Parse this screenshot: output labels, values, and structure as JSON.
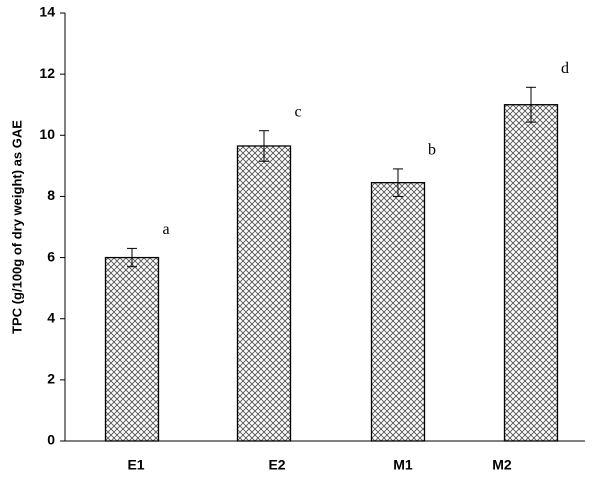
{
  "chart_data": {
    "type": "bar",
    "y_label": "TPC (g/100g of dry weight) as GAE",
    "categories": [
      "E1",
      "E2",
      "M1",
      "M2"
    ],
    "values": [
      6.0,
      9.65,
      8.45,
      11.0
    ],
    "errors": [
      0.3,
      0.5,
      0.45,
      0.57
    ],
    "annotations": [
      "a",
      "c",
      "b",
      "d"
    ],
    "color": "#555555",
    "ylim": [
      0,
      14
    ],
    "yticks": [
      0,
      2,
      4,
      6,
      8,
      10,
      12,
      14
    ],
    "grid": false
  }
}
